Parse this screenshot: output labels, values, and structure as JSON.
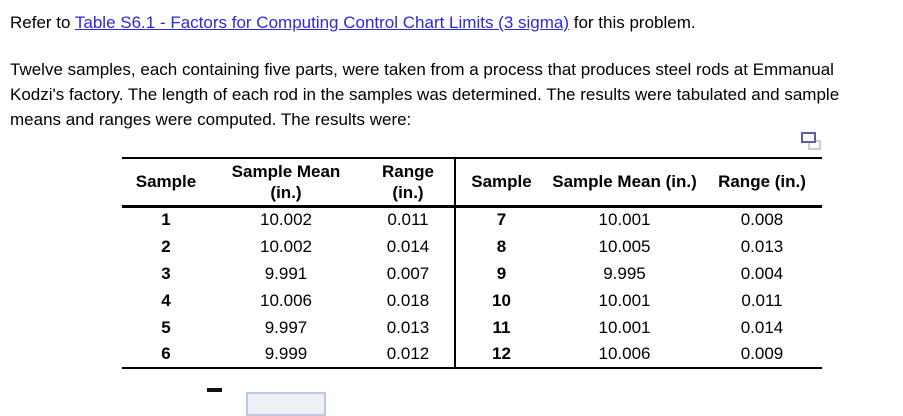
{
  "intro": {
    "prefix": "Refer to ",
    "link_text": "Table S6.1 - Factors for Computing Control Chart Limits (3 sigma)",
    "suffix": " for this problem."
  },
  "problem_text": "Twelve samples, each containing five parts, were taken from a process that produces steel rods at Emmanual Kodzi's factory. The length of each rod in the samples was determined. The results were tabulated and sample means and ranges were computed. The results were:",
  "colors": {
    "link": "#2b2bd7",
    "copy_icon": "#5b5ea6",
    "copy_icon_back": "#c7cbe3",
    "input_border": "#bcc8e6",
    "input_fill": "#eef0f4"
  },
  "icons": {
    "copy": "copy-icon"
  },
  "table": {
    "left_headers": {
      "sample": "Sample",
      "mean": "Sample Mean (in.)",
      "range": "Range (in.)"
    },
    "right_headers": {
      "sample": "Sample",
      "mean": "Sample Mean (in.)",
      "range": "Range (in.)"
    },
    "left_rows": [
      {
        "sample": "1",
        "mean": "10.002",
        "range": "0.011"
      },
      {
        "sample": "2",
        "mean": "10.002",
        "range": "0.014"
      },
      {
        "sample": "3",
        "mean": "9.991",
        "range": "0.007"
      },
      {
        "sample": "4",
        "mean": "10.006",
        "range": "0.018"
      },
      {
        "sample": "5",
        "mean": "9.997",
        "range": "0.013"
      },
      {
        "sample": "6",
        "mean": "9.999",
        "range": "0.012"
      }
    ],
    "right_rows": [
      {
        "sample": "7",
        "mean": "10.001",
        "range": "0.008"
      },
      {
        "sample": "8",
        "mean": "10.005",
        "range": "0.013"
      },
      {
        "sample": "9",
        "mean": "9.995",
        "range": "0.004"
      },
      {
        "sample": "10",
        "mean": "10.001",
        "range": "0.011"
      },
      {
        "sample": "11",
        "mean": "10.001",
        "range": "0.014"
      },
      {
        "sample": "12",
        "mean": "10.006",
        "range": "0.009"
      }
    ]
  },
  "answer_input": {
    "value": ""
  }
}
